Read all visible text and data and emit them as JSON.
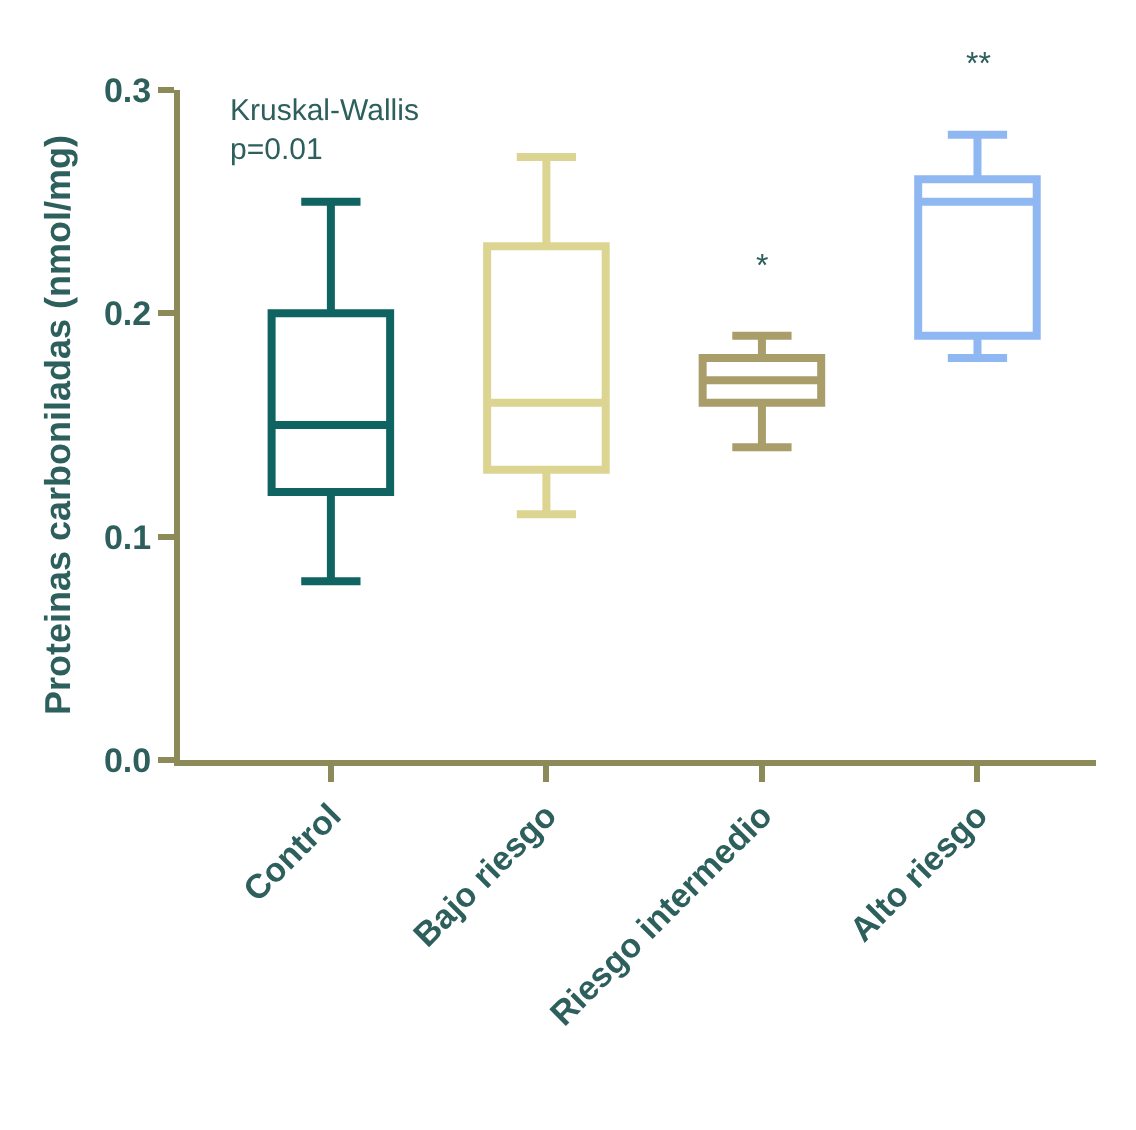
{
  "chart_data": {
    "type": "box",
    "ylabel": "Proteinas carboniladas (nmol/mg)",
    "categories": [
      "Control",
      "Bajo riesgo",
      "Riesgo intermedio",
      "Alto riesgo"
    ],
    "colors": [
      "#0f6360",
      "#dcd592",
      "#a99d6a",
      "#8fb8f2"
    ],
    "boxes": [
      {
        "low": 0.08,
        "q1": 0.12,
        "median": 0.15,
        "q3": 0.2,
        "high": 0.25
      },
      {
        "low": 0.11,
        "q1": 0.13,
        "median": 0.16,
        "q3": 0.23,
        "high": 0.27
      },
      {
        "low": 0.14,
        "q1": 0.16,
        "median": 0.17,
        "q3": 0.18,
        "high": 0.19
      },
      {
        "low": 0.18,
        "q1": 0.19,
        "median": 0.25,
        "q3": 0.26,
        "high": 0.28
      }
    ],
    "ylim": [
      0,
      0.3
    ],
    "yticks": [
      {
        "value": 0,
        "label": "0.0"
      },
      0.1,
      0.2,
      0.3
    ],
    "grid": false,
    "annotations": [
      "Kruskal-Wallis\np=0.01",
      "*",
      "**"
    ]
  }
}
